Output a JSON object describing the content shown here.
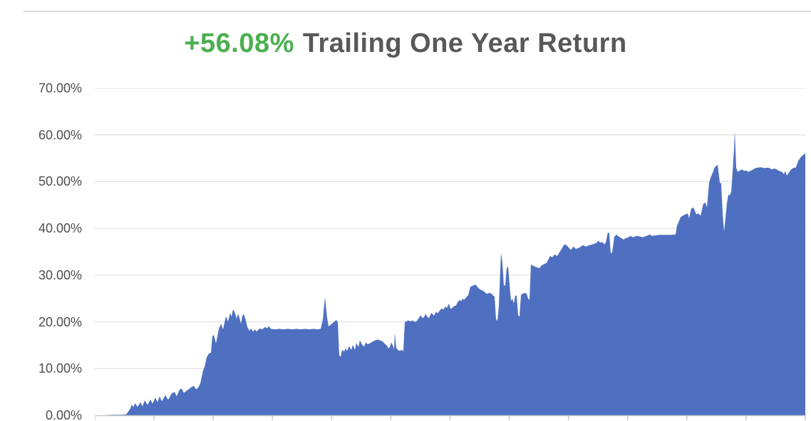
{
  "title": {
    "return_value": "+56.08%",
    "label": "Trailing One Year Return",
    "value_color": "#4caf50",
    "label_color": "#58585a"
  },
  "chart_data": {
    "type": "area",
    "title": "+56.08% Trailing One Year Return",
    "series_name": "Trailing One Year Return",
    "unit": "percent",
    "final_value_pct": 56.08,
    "ylim": [
      0,
      70
    ],
    "y_tick_labels": [
      "70.00%",
      "60.00%",
      "50.00%",
      "40.00%",
      "30.00%",
      "20.00%",
      "10.00%",
      "0.00%"
    ],
    "y_tick_values": [
      70,
      60,
      50,
      40,
      30,
      20,
      10,
      0
    ],
    "x_tick_count": 13,
    "x_axis_labels_visible": false,
    "grid": true,
    "legend": "none",
    "area_color": "#4f70c1",
    "gridline_color": "#d9d9d9",
    "axis_line_color": "#c8c8c8",
    "points": [
      [
        0,
        0
      ],
      [
        12,
        0
      ],
      [
        24,
        0.1
      ],
      [
        36,
        0.1
      ],
      [
        44,
        0.2
      ],
      [
        47,
        0.8
      ],
      [
        50,
        1.5
      ],
      [
        52,
        2.3
      ],
      [
        54,
        1.8
      ],
      [
        57,
        2.6
      ],
      [
        60,
        1.8
      ],
      [
        64,
        2.8
      ],
      [
        67,
        1.9
      ],
      [
        70,
        3.2
      ],
      [
        74,
        2.2
      ],
      [
        78,
        3.4
      ],
      [
        81,
        2.5
      ],
      [
        85,
        3.8
      ],
      [
        88,
        2.8
      ],
      [
        91,
        4.1
      ],
      [
        94,
        3
      ],
      [
        99,
        4.3
      ],
      [
        103,
        3.3
      ],
      [
        108,
        4.7
      ],
      [
        112,
        5
      ],
      [
        115,
        4.1
      ],
      [
        119,
        5.5
      ],
      [
        122,
        5.7
      ],
      [
        125,
        4.8
      ],
      [
        129,
        5.3
      ],
      [
        132,
        5.6
      ],
      [
        135,
        6
      ],
      [
        139,
        6.3
      ],
      [
        142,
        5.6
      ],
      [
        145,
        5.9
      ],
      [
        148,
        6.8
      ],
      [
        150,
        8.2
      ],
      [
        152,
        9.6
      ],
      [
        154,
        10.3
      ],
      [
        157,
        12.4
      ],
      [
        160,
        13.2
      ],
      [
        163,
        13.4
      ],
      [
        165,
        16.9
      ],
      [
        167,
        17.2
      ],
      [
        170,
        15.4
      ],
      [
        174,
        18.4
      ],
      [
        177,
        19.6
      ],
      [
        180,
        18.4
      ],
      [
        184,
        21.2
      ],
      [
        187,
        20.1
      ],
      [
        190,
        21.9
      ],
      [
        192,
        21.1
      ],
      [
        194,
        22.7
      ],
      [
        196,
        22.2
      ],
      [
        199,
        20.7
      ],
      [
        201,
        21.7
      ],
      [
        203,
        20.9
      ],
      [
        205,
        19.6
      ],
      [
        207,
        21.2
      ],
      [
        209,
        21.7
      ],
      [
        212,
        20.3
      ],
      [
        214,
        18.9
      ],
      [
        217,
        18.1
      ],
      [
        219,
        18.6
      ],
      [
        222,
        17.9
      ],
      [
        225,
        18.4
      ],
      [
        227,
        17.9
      ],
      [
        230,
        18.4
      ],
      [
        232,
        18.6
      ],
      [
        235,
        18.4
      ],
      [
        239,
        18.9
      ],
      [
        242,
        18.6
      ],
      [
        244,
        19.1
      ],
      [
        247,
        18.5
      ],
      [
        253,
        18.4
      ],
      [
        259,
        18.5
      ],
      [
        265,
        18.4
      ],
      [
        271,
        18.5
      ],
      [
        277,
        18.4
      ],
      [
        283,
        18.5
      ],
      [
        289,
        18.4
      ],
      [
        295,
        18.5
      ],
      [
        301,
        18.4
      ],
      [
        307,
        18.5
      ],
      [
        313,
        18.4
      ],
      [
        317,
        18.5
      ],
      [
        320,
        20.5
      ],
      [
        323,
        25.3
      ],
      [
        326,
        20.9
      ],
      [
        328,
        19
      ],
      [
        332,
        19.5
      ],
      [
        335,
        19.9
      ],
      [
        339,
        20.4
      ],
      [
        341,
        19.9
      ],
      [
        343,
        12.9
      ],
      [
        345,
        12.5
      ],
      [
        347,
        14
      ],
      [
        350,
        13.7
      ],
      [
        352,
        14.3
      ],
      [
        354,
        13.8
      ],
      [
        357,
        14.8
      ],
      [
        360,
        14
      ],
      [
        362,
        15.1
      ],
      [
        365,
        14
      ],
      [
        367,
        15.5
      ],
      [
        370,
        14.6
      ],
      [
        372,
        16.1
      ],
      [
        375,
        15.1
      ],
      [
        378,
        14.7
      ],
      [
        380,
        15.6
      ],
      [
        383,
        15.2
      ],
      [
        386,
        15.4
      ],
      [
        390,
        15.8
      ],
      [
        394,
        16.1
      ],
      [
        397,
        16.2
      ],
      [
        401,
        16
      ],
      [
        404,
        15.8
      ],
      [
        407,
        15.3
      ],
      [
        410,
        14.9
      ],
      [
        412,
        14.3
      ],
      [
        414,
        14.6
      ],
      [
        416,
        15.6
      ],
      [
        418,
        15
      ],
      [
        420,
        14.2
      ],
      [
        421,
        17.6
      ],
      [
        423,
        14.5
      ],
      [
        425,
        14
      ],
      [
        428,
        13.8
      ],
      [
        431,
        14
      ],
      [
        433,
        13.7
      ],
      [
        435,
        19.9
      ],
      [
        437,
        20.1
      ],
      [
        440,
        20.3
      ],
      [
        443,
        20.1
      ],
      [
        446,
        20.3
      ],
      [
        449,
        20
      ],
      [
        452,
        20.2
      ],
      [
        455,
        20.9
      ],
      [
        457,
        21.4
      ],
      [
        460,
        20.8
      ],
      [
        462,
        21
      ],
      [
        464,
        21.7
      ],
      [
        467,
        21
      ],
      [
        469,
        20.8
      ],
      [
        472,
        21.9
      ],
      [
        474,
        21.7
      ],
      [
        476,
        21.3
      ],
      [
        479,
        22.2
      ],
      [
        481,
        21.8
      ],
      [
        484,
        22.4
      ],
      [
        487,
        22.9
      ],
      [
        489,
        22.6
      ],
      [
        492,
        23.3
      ],
      [
        494,
        23
      ],
      [
        497,
        23.9
      ],
      [
        499,
        22.8
      ],
      [
        502,
        23
      ],
      [
        504,
        23.4
      ],
      [
        507,
        23.5
      ],
      [
        509,
        24.2
      ],
      [
        512,
        24.7
      ],
      [
        514,
        24.4
      ],
      [
        516,
        25
      ],
      [
        518,
        24.7
      ],
      [
        521,
        25.2
      ],
      [
        524,
        25.7
      ],
      [
        527,
        27.5
      ],
      [
        530,
        27.7
      ],
      [
        534,
        28
      ],
      [
        537,
        27.5
      ],
      [
        540,
        27
      ],
      [
        544,
        26.7
      ],
      [
        547,
        26.4
      ],
      [
        550,
        26
      ],
      [
        554,
        26.2
      ],
      [
        557,
        26
      ],
      [
        559,
        25.6
      ],
      [
        561,
        25.4
      ],
      [
        563,
        20.6
      ],
      [
        565,
        20.2
      ],
      [
        567,
        23.4
      ],
      [
        570,
        34.8
      ],
      [
        572,
        32.6
      ],
      [
        574,
        27.7
      ],
      [
        576,
        27.9
      ],
      [
        578,
        31.5
      ],
      [
        580,
        31.8
      ],
      [
        582,
        28
      ],
      [
        584,
        24.5
      ],
      [
        586,
        25
      ],
      [
        588,
        23.9
      ],
      [
        590,
        25.7
      ],
      [
        592,
        25.5
      ],
      [
        594,
        21.4
      ],
      [
        596,
        21.1
      ],
      [
        598,
        25.7
      ],
      [
        600,
        26
      ],
      [
        604,
        26.2
      ],
      [
        606,
        26
      ],
      [
        608,
        25
      ],
      [
        610,
        24.7
      ],
      [
        612,
        32.3
      ],
      [
        615,
        32
      ],
      [
        618,
        31.8
      ],
      [
        621,
        31.6
      ],
      [
        624,
        31.5
      ],
      [
        627,
        32.1
      ],
      [
        631,
        32.4
      ],
      [
        634,
        32.6
      ],
      [
        637,
        33.5
      ],
      [
        639,
        34.1
      ],
      [
        642,
        33.8
      ],
      [
        645,
        34.4
      ],
      [
        649,
        34.1
      ],
      [
        652,
        34.9
      ],
      [
        655,
        35.6
      ],
      [
        659,
        36.6
      ],
      [
        662,
        36.4
      ],
      [
        665,
        35.9
      ],
      [
        668,
        35.4
      ],
      [
        672,
        36.1
      ],
      [
        675,
        35.6
      ],
      [
        680,
        35.9
      ],
      [
        685,
        36.4
      ],
      [
        689,
        36.1
      ],
      [
        694,
        36.4
      ],
      [
        699,
        36.6
      ],
      [
        704,
        36.9
      ],
      [
        707,
        37.4
      ],
      [
        709,
        36.9
      ],
      [
        712,
        37.1
      ],
      [
        715,
        36.6
      ],
      [
        717,
        36.9
      ],
      [
        720,
        39.2
      ],
      [
        722,
        38.9
      ],
      [
        724,
        34.6
      ],
      [
        726,
        34.9
      ],
      [
        729,
        38.2
      ],
      [
        732,
        38.7
      ],
      [
        734,
        38.4
      ],
      [
        737,
        38.1
      ],
      [
        742,
        37.6
      ],
      [
        745,
        37.9
      ],
      [
        749,
        38.1
      ],
      [
        752,
        38.4
      ],
      [
        755,
        38.1
      ],
      [
        760,
        38.4
      ],
      [
        764,
        38.3
      ],
      [
        769,
        38.1
      ],
      [
        774,
        38.4
      ],
      [
        779,
        38.7
      ],
      [
        782,
        38.4
      ],
      [
        787,
        38.5
      ],
      [
        792,
        38.6
      ],
      [
        798,
        38.6
      ],
      [
        804,
        38.6
      ],
      [
        810,
        38.6
      ],
      [
        815,
        38.7
      ],
      [
        817,
        40.6
      ],
      [
        820,
        41.6
      ],
      [
        822,
        42.4
      ],
      [
        825,
        42.7
      ],
      [
        829,
        43
      ],
      [
        832,
        43.2
      ],
      [
        834,
        42.2
      ],
      [
        837,
        44.2
      ],
      [
        840,
        44.5
      ],
      [
        844,
        43
      ],
      [
        847,
        43.2
      ],
      [
        850,
        42.7
      ],
      [
        854,
        45.3
      ],
      [
        857,
        45.5
      ],
      [
        859,
        44.5
      ],
      [
        862,
        49.8
      ],
      [
        864,
        50.8
      ],
      [
        867,
        51.9
      ],
      [
        870,
        53.1
      ],
      [
        874,
        53.6
      ],
      [
        877,
        49.8
      ],
      [
        879,
        49.6
      ],
      [
        881,
        43.2
      ],
      [
        883,
        39.3
      ],
      [
        885,
        42.2
      ],
      [
        887,
        45.3
      ],
      [
        889,
        47.3
      ],
      [
        891,
        47
      ],
      [
        893,
        47.8
      ],
      [
        895,
        52
      ],
      [
        897,
        56.9
      ],
      [
        898,
        60.9
      ],
      [
        900,
        53
      ],
      [
        902,
        52.1
      ],
      [
        905,
        52.4
      ],
      [
        908,
        52.6
      ],
      [
        911,
        52.3
      ],
      [
        914,
        52.4
      ],
      [
        917,
        52.1
      ],
      [
        920,
        52.3
      ],
      [
        924,
        52.6
      ],
      [
        927,
        52.9
      ],
      [
        930,
        53
      ],
      [
        934,
        53.1
      ],
      [
        937,
        53
      ],
      [
        940,
        52.9
      ],
      [
        944,
        53
      ],
      [
        947,
        52.9
      ],
      [
        950,
        52.6
      ],
      [
        954,
        52.8
      ],
      [
        957,
        52.6
      ],
      [
        960,
        52.3
      ],
      [
        964,
        52.1
      ],
      [
        967,
        51.6
      ],
      [
        969,
        52.3
      ],
      [
        971,
        51.3
      ],
      [
        974,
        51.9
      ],
      [
        977,
        52.6
      ],
      [
        980,
        52.9
      ],
      [
        984,
        53.1
      ],
      [
        987,
        54.4
      ],
      [
        990,
        55.1
      ],
      [
        993,
        55.6
      ],
      [
        995,
        55.8
      ],
      [
        997,
        56.08
      ]
    ]
  }
}
